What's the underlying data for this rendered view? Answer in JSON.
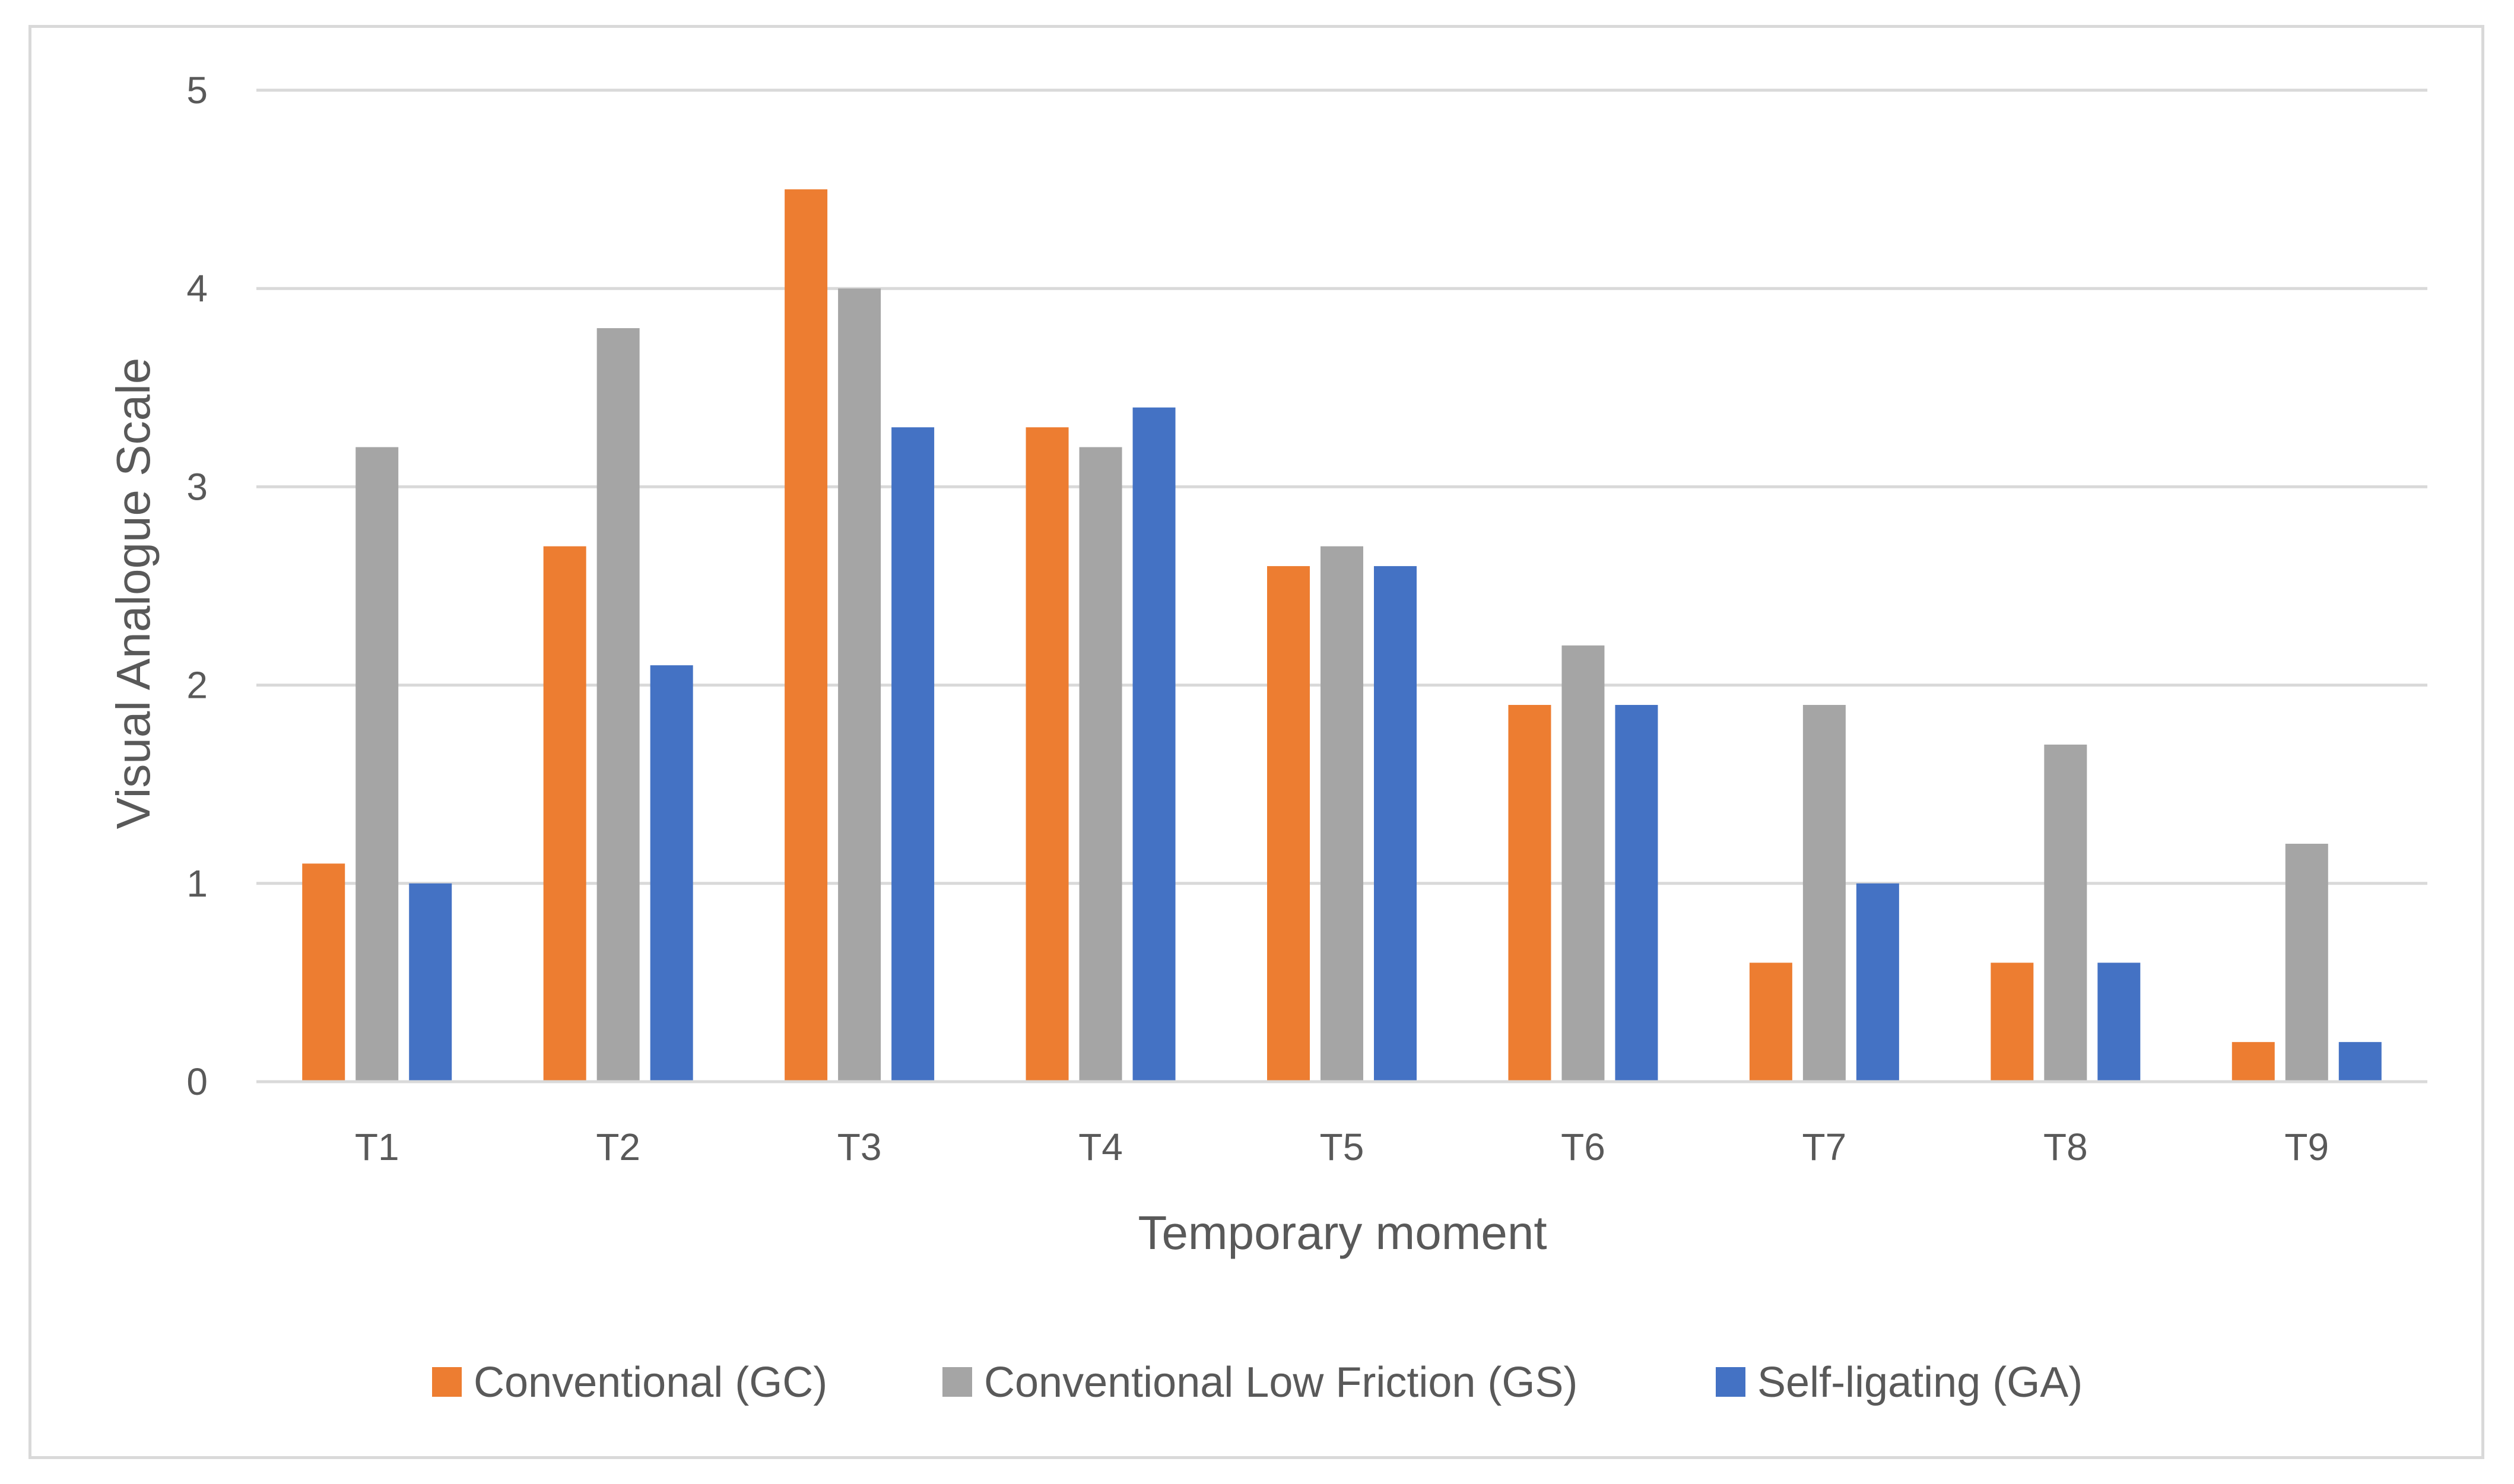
{
  "chart_data": {
    "type": "bar",
    "title": "",
    "xlabel": "Temporary moment",
    "ylabel": "Visual Analogue Scale",
    "ylim": [
      0,
      5
    ],
    "yticks": [
      "0",
      "1",
      "2",
      "3",
      "4",
      "5"
    ],
    "grid": true,
    "legend_position": "bottom",
    "categories": [
      "T1",
      "T2",
      "T3",
      "T4",
      "T5",
      "T6",
      "T7",
      "T8",
      "T9"
    ],
    "series": [
      {
        "name": "Conventional (GC)",
        "color": "#ED7D31",
        "values": [
          1.1,
          2.7,
          4.5,
          3.3,
          2.6,
          1.9,
          0.6,
          0.6,
          0.2
        ]
      },
      {
        "name": "Conventional Low Friction (GS)",
        "color": "#A5A5A5",
        "values": [
          3.2,
          3.8,
          4.0,
          3.2,
          2.7,
          2.2,
          1.9,
          1.7,
          1.2
        ]
      },
      {
        "name": "Self-ligating (GA)",
        "color": "#4472C4",
        "values": [
          1.0,
          2.1,
          3.3,
          3.4,
          2.6,
          1.9,
          1.0,
          0.6,
          0.2
        ]
      }
    ]
  }
}
